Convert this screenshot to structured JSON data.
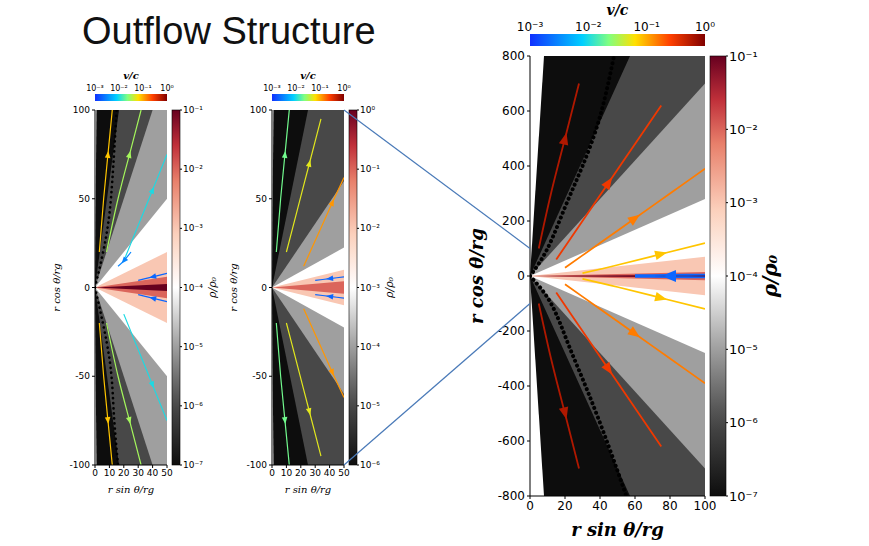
{
  "title": "Outflow Structure",
  "chart_data": [
    {
      "type": "density_map",
      "x_label": "r sin θ/rg",
      "y_label": "r cos θ/rg",
      "xlim": [
        0,
        50
      ],
      "xticks": [
        0,
        10,
        20,
        30,
        40,
        50
      ],
      "ylim": [
        -100,
        100
      ],
      "yticks": [
        -100,
        -50,
        0,
        50,
        100
      ],
      "density": {
        "label": "ρ/ρ₀",
        "range": [
          1e-07,
          0.1
        ],
        "ticks": [
          {
            "value": 0.1,
            "label": "10⁻¹"
          },
          {
            "value": 0.01,
            "label": "10⁻²"
          },
          {
            "value": 0.001,
            "label": "10⁻³"
          },
          {
            "value": 0.0001,
            "label": "10⁻⁴"
          },
          {
            "value": 1e-05,
            "label": "10⁻⁵"
          },
          {
            "value": 1e-06,
            "label": "10⁻⁶"
          },
          {
            "value": 1e-07,
            "label": "10⁻⁷"
          }
        ],
        "values": [
          1e-07,
          1e-06,
          1e-05,
          0.0001,
          0.001,
          0.01,
          0.1
        ],
        "z_over_R": [
          100,
          6,
          2.5,
          1.0,
          0.4,
          0.12,
          0.04
        ]
      },
      "velocity": {
        "label": "v/c",
        "range": [
          0.001,
          1
        ],
        "ticks": [
          {
            "value": 0.001,
            "label": "10⁻³"
          },
          {
            "value": 0.01,
            "label": "10⁻²"
          },
          {
            "value": 0.1,
            "label": "10⁻¹"
          },
          {
            "value": 1,
            "label": "10⁰"
          }
        ]
      },
      "boundary": [
        {
          "x": [
            0,
            8,
            12,
            15
          ],
          "y": [
            0,
            30,
            60,
            100
          ]
        },
        {
          "x": [
            0,
            10,
            13,
            16
          ],
          "y": [
            0,
            -40,
            -70,
            -100
          ]
        }
      ],
      "streamlines": [
        {
          "x": [
            3,
            6,
            9,
            12
          ],
          "y": [
            20,
            50,
            75,
            100
          ],
          "v": 0.08
        },
        {
          "x": [
            3,
            6,
            9,
            12
          ],
          "y": [
            -20,
            -50,
            -75,
            -100
          ],
          "v": 0.08
        },
        {
          "x": [
            8,
            16,
            24,
            32
          ],
          "y": [
            20,
            50,
            75,
            100
          ],
          "v": 0.03
        },
        {
          "x": [
            8,
            16,
            24,
            32
          ],
          "y": [
            -20,
            -50,
            -75,
            -100
          ],
          "v": 0.03
        },
        {
          "x": [
            20,
            30,
            40,
            50
          ],
          "y": [
            15,
            35,
            55,
            75
          ],
          "v": 0.01
        },
        {
          "x": [
            20,
            30,
            40,
            50
          ],
          "y": [
            -15,
            -35,
            -55,
            -75
          ],
          "v": 0.01
        },
        {
          "x": [
            50,
            40,
            30
          ],
          "y": [
            8,
            6,
            4
          ],
          "v": 0.002
        },
        {
          "x": [
            50,
            40,
            30
          ],
          "y": [
            -8,
            -6,
            -4
          ],
          "v": 0.002
        },
        {
          "x": [
            25,
            20,
            16
          ],
          "y": [
            20,
            15,
            12
          ],
          "v": 0.003
        }
      ]
    },
    {
      "type": "density_map",
      "x_label": "r sin θ/rg",
      "y_label": "r cos θ/rg",
      "xlim": [
        0,
        50
      ],
      "xticks": [
        0,
        10,
        20,
        30,
        40,
        50
      ],
      "ylim": [
        -100,
        100
      ],
      "yticks": [
        -100,
        -50,
        0,
        50,
        100
      ],
      "density": {
        "label": "ρ/ρ₀",
        "range": [
          1e-06,
          1
        ],
        "ticks": [
          {
            "value": 1,
            "label": "10⁰"
          },
          {
            "value": 0.1,
            "label": "10⁻¹"
          },
          {
            "value": 0.01,
            "label": "10⁻²"
          },
          {
            "value": 0.001,
            "label": "10⁻³"
          },
          {
            "value": 0.0001,
            "label": "10⁻⁴"
          },
          {
            "value": 1e-05,
            "label": "10⁻⁵"
          },
          {
            "value": 1e-06,
            "label": "10⁻⁶"
          }
        ],
        "values": [
          1e-06,
          1e-05,
          0.0001,
          0.001,
          0.01,
          0.1
        ],
        "z_over_R": [
          100,
          4,
          1.2,
          0.45,
          0.2,
          0.07
        ]
      },
      "velocity": {
        "label": "v/c",
        "range": [
          0.001,
          1
        ],
        "ticks": [
          {
            "value": 0.001,
            "label": "10⁻³"
          },
          {
            "value": 0.01,
            "label": "10⁻²"
          },
          {
            "value": 0.1,
            "label": "10⁻¹"
          },
          {
            "value": 1,
            "label": "10⁰"
          }
        ]
      },
      "streamlines": [
        {
          "x": [
            3,
            6,
            9,
            12
          ],
          "y": [
            20,
            50,
            75,
            100
          ],
          "v": 0.02
        },
        {
          "x": [
            3,
            6,
            9,
            12
          ],
          "y": [
            -20,
            -50,
            -75,
            -100
          ],
          "v": 0.02
        },
        {
          "x": [
            10,
            18,
            26,
            34
          ],
          "y": [
            20,
            45,
            70,
            95
          ],
          "v": 0.05
        },
        {
          "x": [
            10,
            18,
            26,
            34
          ],
          "y": [
            -20,
            -45,
            -70,
            -95
          ],
          "v": 0.05
        },
        {
          "x": [
            22,
            32,
            42,
            50
          ],
          "y": [
            12,
            30,
            48,
            62
          ],
          "v": 0.12
        },
        {
          "x": [
            22,
            32,
            42,
            50
          ],
          "y": [
            -12,
            -30,
            -48,
            -62
          ],
          "v": 0.12
        },
        {
          "x": [
            50,
            40,
            30
          ],
          "y": [
            6,
            5,
            4
          ],
          "v": 0.002
        },
        {
          "x": [
            50,
            40,
            30
          ],
          "y": [
            -6,
            -5,
            -4
          ],
          "v": 0.002
        }
      ]
    },
    {
      "type": "density_map",
      "x_label": "r sin θ/rg",
      "y_label": "r cos θ/rg",
      "xlim": [
        0,
        100
      ],
      "xticks": [
        0,
        20,
        40,
        60,
        80,
        100
      ],
      "ylim": [
        -800,
        800
      ],
      "yticks": [
        -800,
        -600,
        -400,
        -200,
        0,
        200,
        400,
        600,
        800
      ],
      "density": {
        "label": "ρ/ρ₀",
        "range": [
          1e-07,
          0.1
        ],
        "ticks": [
          {
            "value": 0.1,
            "label": "10⁻¹"
          },
          {
            "value": 0.01,
            "label": "10⁻²"
          },
          {
            "value": 0.001,
            "label": "10⁻³"
          },
          {
            "value": 0.0001,
            "label": "10⁻⁴"
          },
          {
            "value": 1e-05,
            "label": "10⁻⁵"
          },
          {
            "value": 1e-06,
            "label": "10⁻⁶"
          },
          {
            "value": 1e-07,
            "label": "10⁻⁷"
          }
        ],
        "values": [
          1e-07,
          1e-06,
          1e-05,
          0.0001,
          0.001,
          0.01,
          0.1
        ],
        "z_over_R": [
          100,
          14,
          7,
          2.8,
          0.7,
          0.15,
          0.05
        ]
      },
      "velocity": {
        "label": "v/c",
        "range": [
          0.001,
          1
        ],
        "ticks": [
          {
            "value": 0.001,
            "label": "10⁻³"
          },
          {
            "value": 0.01,
            "label": "10⁻²"
          },
          {
            "value": 0.1,
            "label": "10⁻¹"
          },
          {
            "value": 1,
            "label": "10⁰"
          }
        ]
      },
      "boundary": [
        {
          "x": [
            0,
            10,
            20,
            30,
            40,
            48
          ],
          "y": [
            0,
            100,
            250,
            400,
            580,
            800
          ]
        },
        {
          "x": [
            0,
            12,
            22,
            33,
            45,
            55
          ],
          "y": [
            0,
            -100,
            -250,
            -420,
            -620,
            -800
          ]
        }
      ],
      "streamlines": [
        {
          "x": [
            5,
            12,
            20,
            28
          ],
          "y": [
            100,
            300,
            500,
            700
          ],
          "v": 0.6
        },
        {
          "x": [
            5,
            12,
            20,
            28
          ],
          "y": [
            -100,
            -300,
            -500,
            -700
          ],
          "v": 0.6
        },
        {
          "x": [
            15,
            30,
            45,
            60,
            75
          ],
          "y": [
            60,
            200,
            340,
            480,
            620
          ],
          "v": 0.3
        },
        {
          "x": [
            15,
            30,
            45,
            60,
            75
          ],
          "y": [
            -60,
            -200,
            -340,
            -480,
            -620
          ],
          "v": 0.3
        },
        {
          "x": [
            20,
            40,
            60,
            80,
            100
          ],
          "y": [
            30,
            120,
            210,
            300,
            390
          ],
          "v": 0.15
        },
        {
          "x": [
            20,
            40,
            60,
            80,
            100
          ],
          "y": [
            -30,
            -120,
            -210,
            -300,
            -390
          ],
          "v": 0.15
        },
        {
          "x": [
            30,
            50,
            75,
            100
          ],
          "y": [
            10,
            40,
            80,
            120
          ],
          "v": 0.08
        },
        {
          "x": [
            30,
            50,
            75,
            100
          ],
          "y": [
            -10,
            -40,
            -80,
            -120
          ],
          "v": 0.08
        },
        {
          "x": [
            100,
            80,
            60
          ],
          "y": [
            5,
            4,
            3
          ],
          "v": 0.002
        },
        {
          "x": [
            100,
            80,
            60
          ],
          "y": [
            -5,
            -4,
            -3
          ],
          "v": 0.002
        }
      ]
    }
  ]
}
